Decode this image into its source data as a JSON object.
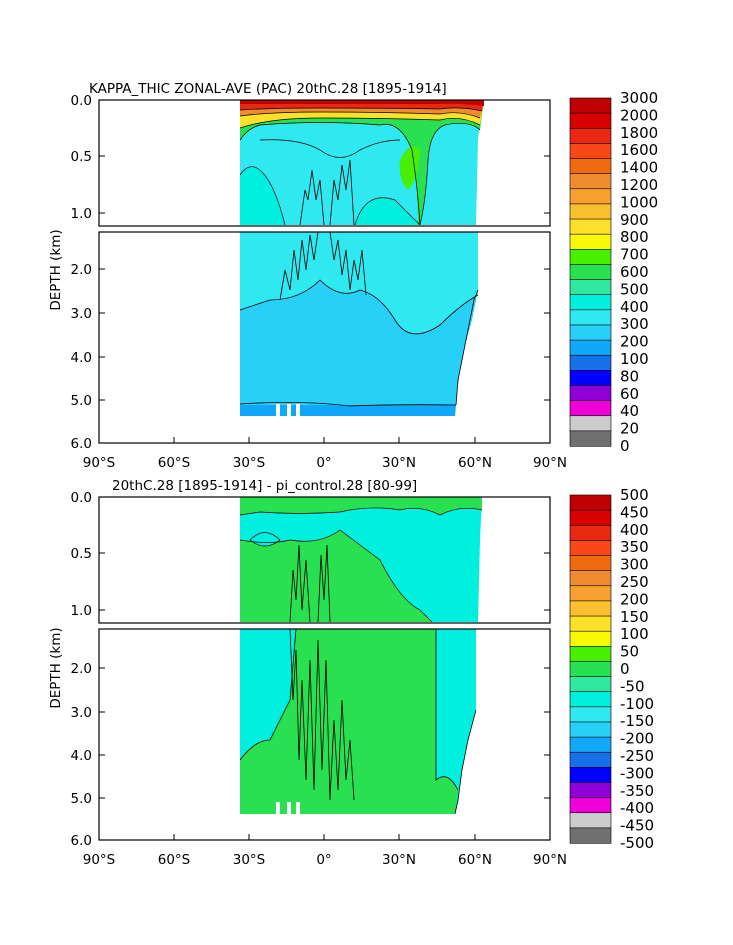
{
  "chart_data": [
    {
      "type": "heatmap",
      "title": "KAPPA_THIC ZONAL-AVE (PAC) 20thC.28 [1895-1914]",
      "ylabel": "DEPTH (km)",
      "x_ticks": [
        "90°S",
        "60°S",
        "30°S",
        "0°",
        "30°N",
        "60°N",
        "90°N"
      ],
      "y_ticks_upper": [
        "0.0",
        "0.5",
        "1.0"
      ],
      "y_ticks_lower": [
        "2.0",
        "3.0",
        "4.0",
        "5.0",
        "6.0"
      ],
      "xlim": [
        -90,
        90
      ],
      "ylim_km": [
        0,
        6
      ],
      "data_extent": {
        "lat_south": -34,
        "lat_north": 66,
        "max_depth_km": 5.35
      },
      "colorbar_levels": [
        "3000",
        "2000",
        "1800",
        "1600",
        "1400",
        "1200",
        "1000",
        "900",
        "800",
        "700",
        "600",
        "500",
        "400",
        "300",
        "200",
        "100",
        "80",
        "60",
        "40",
        "20",
        "0"
      ],
      "colorbar_colors": [
        "#c00000",
        "#d80000",
        "#e82810",
        "#f84818",
        "#f06a10",
        "#f08c30",
        "#f7a030",
        "#fbc030",
        "#fde02a",
        "#f8f808",
        "#48f000",
        "#28e050",
        "#30e8a0",
        "#00f0e0",
        "#30e8f0",
        "#28d0f8",
        "#10a8f8",
        "#1870e8",
        "#0000ff",
        "#9000d8",
        "#f000d8",
        "#cccccc",
        "#707070"
      ],
      "features": [
        {
          "name": "surface high-value band",
          "value": "2000-3000",
          "depth_km": [
            0,
            0.08
          ]
        },
        {
          "name": "upper ocean gradient",
          "value": "500-1800",
          "depth_km": [
            0.08,
            0.4
          ]
        },
        {
          "name": "interior",
          "value": "300-500",
          "depth_km": [
            0.4,
            2.5
          ]
        },
        {
          "name": "deep ocean",
          "value": "200-300",
          "depth_km": [
            2.5,
            5.2
          ]
        },
        {
          "name": "bottom layer",
          "value": "100-200",
          "depth_km": [
            5.2,
            5.35
          ]
        }
      ]
    },
    {
      "type": "heatmap",
      "title": "20thC.28 [1895-1914] - pi_control.28 [80-99]",
      "ylabel": "DEPTH (km)",
      "x_ticks": [
        "90°S",
        "60°S",
        "30°S",
        "0°",
        "30°N",
        "60°N",
        "90°N"
      ],
      "y_ticks_upper": [
        "0.0",
        "0.5",
        "1.0"
      ],
      "y_ticks_lower": [
        "2.0",
        "3.0",
        "4.0",
        "5.0",
        "6.0"
      ],
      "xlim": [
        -90,
        90
      ],
      "ylim_km": [
        0,
        6
      ],
      "data_extent": {
        "lat_south": -34,
        "lat_north": 62,
        "max_depth_km": 5.35
      },
      "colorbar_levels": [
        "500",
        "450",
        "400",
        "350",
        "300",
        "250",
        "200",
        "150",
        "100",
        "50",
        "0",
        "-50",
        "-100",
        "-150",
        "-200",
        "-250",
        "-300",
        "-350",
        "-400",
        "-450",
        "-500"
      ],
      "colorbar_colors": [
        "#c00000",
        "#d80000",
        "#e82810",
        "#f84818",
        "#f06a10",
        "#f08c30",
        "#f7a030",
        "#fbc030",
        "#fde02a",
        "#f8f808",
        "#48f000",
        "#28e050",
        "#30e8a0",
        "#00f0e0",
        "#30e8f0",
        "#28d0f8",
        "#10a8f8",
        "#1870e8",
        "#0000ff",
        "#9000d8",
        "#f000d8",
        "#cccccc",
        "#707070"
      ],
      "features": [
        {
          "name": "positive anomaly region",
          "value": "0-50",
          "lat_range": [
            -34,
            45
          ]
        },
        {
          "name": "negative anomaly region",
          "value": "-50-0",
          "lat_range": [
            -34,
            62
          ]
        }
      ]
    }
  ]
}
